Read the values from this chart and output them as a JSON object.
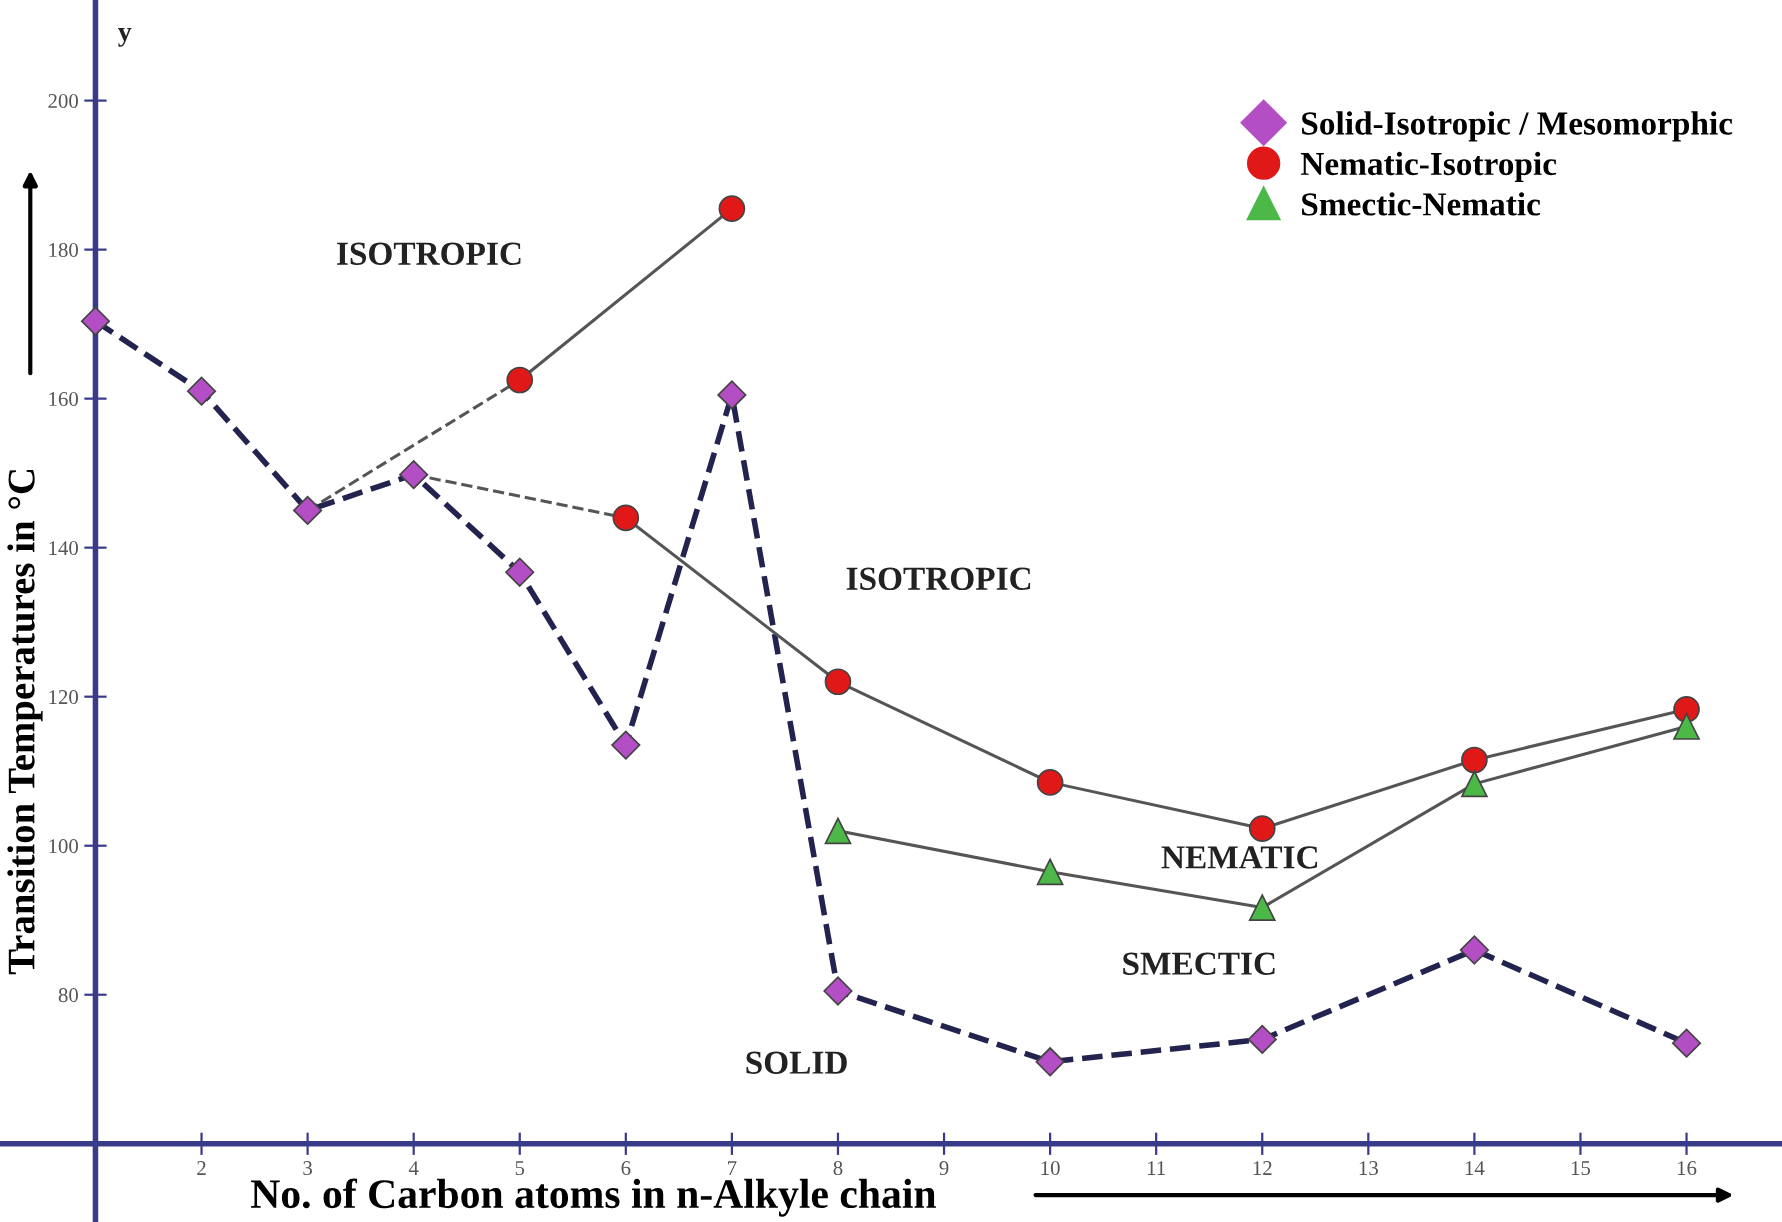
{
  "chart_data": {
    "type": "line",
    "xlabel": "No. of Carbon atoms in n-Alkyle chain",
    "ylabel": "Transition Temperatures in °C",
    "xlim": [
      0.1,
      16.9
    ],
    "ylim": [
      49.5,
      213.5
    ],
    "xticks": [
      2,
      3,
      4,
      5,
      6,
      7,
      8,
      9,
      10,
      11,
      12,
      13,
      14,
      15,
      16
    ],
    "yticks": [
      80,
      100,
      120,
      140,
      160,
      180,
      200
    ],
    "grid": false,
    "legend": "top right",
    "series": [
      {
        "name": "Solid-Isotropic / Mesomorphic",
        "color": "#b44ec4",
        "line_style": "dashed",
        "marker": "diamond",
        "x": [
          1,
          2,
          3,
          4,
          5,
          6,
          7,
          8,
          10,
          12,
          14,
          16
        ],
        "values": [
          170.4,
          161,
          145,
          149.8,
          136.7,
          113.5,
          160.5,
          80.5,
          71,
          74,
          86,
          73.5
        ]
      },
      {
        "name": "Nematic-Isotropic",
        "color": "#e01818",
        "line_style": "solid",
        "marker": "circle",
        "x": [
          5,
          7
        ],
        "values": [
          162.5,
          185.5
        ]
      },
      {
        "color": "#e01818",
        "line_style": "solid",
        "marker": "circle",
        "x": [
          6,
          8,
          10,
          12,
          14,
          16
        ],
        "values": [
          144,
          122,
          108.5,
          102.3,
          111.5,
          118.3
        ]
      },
      {
        "name": "Smectic-Nematic",
        "color": "#4cb848",
        "line_style": "solid",
        "marker": "triangle",
        "x": [
          8,
          10,
          12,
          14,
          16
        ],
        "values": [
          102,
          96.5,
          91.7,
          108.3,
          116
        ]
      },
      {
        "color": "#555555",
        "line_style": "dashed",
        "marker": "none",
        "x": [
          3,
          5
        ],
        "values": [
          145,
          162.5
        ]
      },
      {
        "color": "#555555",
        "line_style": "dashed",
        "marker": "none",
        "x": [
          4,
          6
        ],
        "values": [
          149.8,
          144
        ]
      }
    ],
    "annotations": [
      "y",
      "ISOTROPIC",
      "ISOTROPIC",
      "NEMATIC",
      "SMECTIC",
      "SOLID"
    ]
  }
}
